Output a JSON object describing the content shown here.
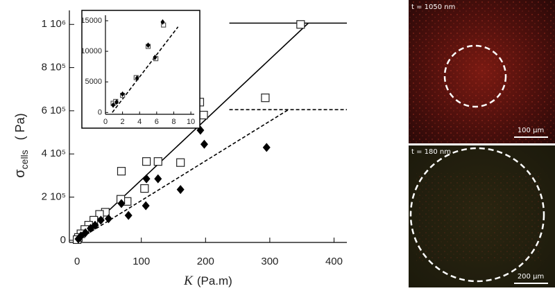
{
  "chart_data": [
    {
      "type": "scatter",
      "y_label": {
        "symbol": "σ",
        "subscript": "cells",
        "unit": "( Pa)"
      },
      "x_label": {
        "symbol": "K",
        "unit": "(Pa.m)"
      },
      "xlim": [
        -12,
        420
      ],
      "ylim": [
        -10000,
        1065000
      ],
      "xticks": [
        0,
        100,
        200,
        300,
        400
      ],
      "yticks": [
        0,
        {
          "value": 200000,
          "label": "2 10⁵"
        },
        {
          "value": 400000,
          "label": "4 10⁵"
        },
        {
          "value": 600000,
          "label": "6 10⁵"
        },
        {
          "value": 800000,
          "label": "8 10⁵"
        },
        {
          "value": 1000000,
          "label": "1 10⁶"
        }
      ],
      "series": [
        {
          "marker": "square",
          "color": "#222",
          "x": [
            348,
            191,
            293,
            197,
            108,
            126,
            161,
            69,
            105,
            78,
            68,
            44,
            35,
            26,
            18,
            12,
            6,
            2,
            0
          ],
          "values": [
            1000000,
            640000,
            660000,
            580000,
            365000,
            365000,
            360000,
            320000,
            240000,
            180000,
            190000,
            130000,
            120000,
            93000,
            70000,
            50000,
            30000,
            13000,
            3000
          ]
        },
        {
          "marker": "diamond",
          "color": "#000",
          "x": [
            192,
            198,
            295,
            108,
            126,
            161,
            107,
            69,
            80,
            49,
            37,
            28,
            21,
            13,
            6,
            2
          ],
          "values": [
            510000,
            445000,
            430000,
            285000,
            285000,
            235000,
            160000,
            170000,
            115000,
            100000,
            93000,
            70000,
            55000,
            35000,
            20000,
            6000
          ]
        }
      ],
      "fits": [
        {
          "style": "solid",
          "x": [
            0,
            360
          ],
          "values": [
            0,
            1006000
          ]
        },
        {
          "style": "solid",
          "x": [
            237,
            420
          ],
          "values": [
            1006000,
            1006000
          ]
        },
        {
          "style": "dashed",
          "x": [
            0,
            329
          ],
          "values": [
            0,
            605000
          ]
        },
        {
          "style": "dashed",
          "x": [
            237,
            420
          ],
          "values": [
            605000,
            605000
          ]
        }
      ]
    },
    {
      "type": "scatter",
      "xlim": [
        0,
        10.4
      ],
      "ylim": [
        -300,
        15900
      ],
      "xticks": [
        0,
        2,
        4,
        6,
        8,
        10
      ],
      "yticks": [
        0,
        5000,
        10000,
        15000
      ],
      "series": [
        {
          "marker": "square",
          "color": "#555",
          "x": [
            0.9,
            1.2,
            2,
            3.6,
            5.9,
            5,
            6.8
          ],
          "values": [
            1500,
            1800,
            2800,
            5700,
            8800,
            10800,
            14300
          ]
        },
        {
          "marker": "diamond",
          "color": "#000",
          "x": [
            0.9,
            1.3,
            2,
            3.7,
            5.8,
            5,
            6.7
          ],
          "values": [
            1200,
            1700,
            3000,
            5600,
            9000,
            11000,
            14800
          ]
        }
      ],
      "fits": [
        {
          "style": "dashed",
          "x": [
            0.8,
            8.5
          ],
          "values": [
            0,
            14000
          ]
        }
      ]
    }
  ],
  "images": [
    {
      "time": "t = 1050 nm",
      "scale_bar": "100 µm"
    },
    {
      "time": "t = 180 nm",
      "scale_bar": "200 µm"
    }
  ]
}
